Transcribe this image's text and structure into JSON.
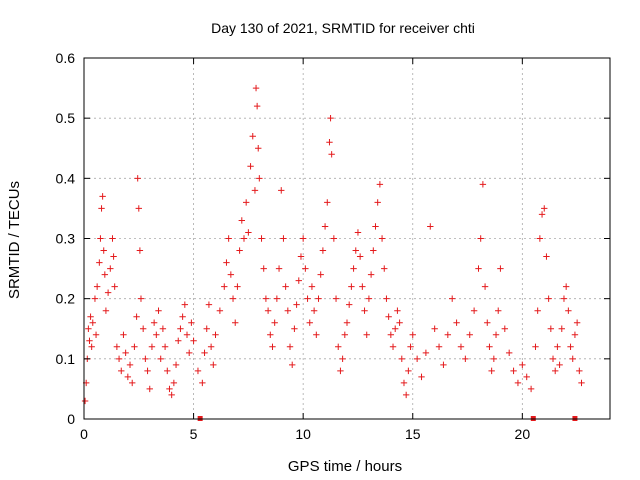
{
  "chart_data": {
    "type": "scatter",
    "title": "Day 130 of 2021, SRMTID for receiver chti",
    "xlabel": "GPS time / hours",
    "ylabel": "SRMTID / TECUs",
    "xlim": [
      0,
      24
    ],
    "ylim": [
      0,
      0.6
    ],
    "x_ticks": [
      0,
      5,
      10,
      15,
      20
    ],
    "y_ticks": [
      0,
      0.1,
      0.2,
      0.3,
      0.4,
      0.5,
      0.6
    ],
    "x_tick_labels": [
      "0",
      "5",
      "10",
      "15",
      "20"
    ],
    "y_tick_labels": [
      "0",
      "0.1",
      "0.2",
      "0.3",
      "0.4",
      "0.5",
      "0.6"
    ],
    "grid": true,
    "marker": "plus",
    "color": "#e41a1c",
    "series": [
      {
        "name": "SRMTID",
        "points": [
          [
            0.05,
            0.03
          ],
          [
            0.1,
            0.06
          ],
          [
            0.15,
            0.1
          ],
          [
            0.2,
            0.15
          ],
          [
            0.25,
            0.13
          ],
          [
            0.3,
            0.17
          ],
          [
            0.35,
            0.12
          ],
          [
            0.4,
            0.16
          ],
          [
            0.5,
            0.2
          ],
          [
            0.55,
            0.14
          ],
          [
            0.6,
            0.22
          ],
          [
            0.7,
            0.26
          ],
          [
            0.75,
            0.3
          ],
          [
            0.8,
            0.35
          ],
          [
            0.85,
            0.37
          ],
          [
            0.9,
            0.28
          ],
          [
            0.95,
            0.24
          ],
          [
            1.0,
            0.18
          ],
          [
            1.1,
            0.21
          ],
          [
            1.2,
            0.25
          ],
          [
            1.3,
            0.3
          ],
          [
            1.35,
            0.27
          ],
          [
            1.4,
            0.22
          ],
          [
            1.5,
            0.12
          ],
          [
            1.6,
            0.1
          ],
          [
            1.7,
            0.08
          ],
          [
            1.8,
            0.14
          ],
          [
            1.9,
            0.11
          ],
          [
            2.0,
            0.07
          ],
          [
            2.1,
            0.09
          ],
          [
            2.2,
            0.06
          ],
          [
            2.3,
            0.12
          ],
          [
            2.4,
            0.17
          ],
          [
            2.45,
            0.4
          ],
          [
            2.5,
            0.35
          ],
          [
            2.55,
            0.28
          ],
          [
            2.6,
            0.2
          ],
          [
            2.7,
            0.15
          ],
          [
            2.8,
            0.1
          ],
          [
            2.9,
            0.08
          ],
          [
            3.0,
            0.05
          ],
          [
            3.1,
            0.12
          ],
          [
            3.2,
            0.16
          ],
          [
            3.3,
            0.14
          ],
          [
            3.4,
            0.18
          ],
          [
            3.5,
            0.1
          ],
          [
            3.6,
            0.15
          ],
          [
            3.7,
            0.12
          ],
          [
            3.8,
            0.08
          ],
          [
            3.9,
            0.05
          ],
          [
            4.0,
            0.04
          ],
          [
            4.1,
            0.06
          ],
          [
            4.2,
            0.09
          ],
          [
            4.3,
            0.13
          ],
          [
            4.4,
            0.15
          ],
          [
            4.5,
            0.17
          ],
          [
            4.6,
            0.19
          ],
          [
            4.7,
            0.14
          ],
          [
            4.8,
            0.11
          ],
          [
            4.9,
            0.16
          ],
          [
            5.0,
            0.13
          ],
          [
            5.2,
            0.08
          ],
          [
            5.4,
            0.06
          ],
          [
            5.5,
            0.11
          ],
          [
            5.6,
            0.15
          ],
          [
            5.7,
            0.19
          ],
          [
            5.8,
            0.12
          ],
          [
            5.9,
            0.09
          ],
          [
            6.0,
            0.14
          ],
          [
            6.2,
            0.18
          ],
          [
            6.4,
            0.22
          ],
          [
            6.5,
            0.26
          ],
          [
            6.6,
            0.3
          ],
          [
            6.7,
            0.24
          ],
          [
            6.8,
            0.2
          ],
          [
            6.9,
            0.16
          ],
          [
            7.0,
            0.22
          ],
          [
            7.1,
            0.28
          ],
          [
            7.2,
            0.33
          ],
          [
            7.3,
            0.3
          ],
          [
            7.4,
            0.36
          ],
          [
            7.5,
            0.31
          ],
          [
            7.6,
            0.42
          ],
          [
            7.7,
            0.47
          ],
          [
            7.8,
            0.38
          ],
          [
            7.85,
            0.55
          ],
          [
            7.9,
            0.52
          ],
          [
            7.95,
            0.45
          ],
          [
            8.0,
            0.4
          ],
          [
            8.1,
            0.3
          ],
          [
            8.2,
            0.25
          ],
          [
            8.3,
            0.2
          ],
          [
            8.4,
            0.18
          ],
          [
            8.5,
            0.14
          ],
          [
            8.6,
            0.12
          ],
          [
            8.7,
            0.16
          ],
          [
            8.8,
            0.2
          ],
          [
            8.9,
            0.25
          ],
          [
            9.0,
            0.38
          ],
          [
            9.1,
            0.3
          ],
          [
            9.2,
            0.22
          ],
          [
            9.3,
            0.18
          ],
          [
            9.4,
            0.12
          ],
          [
            9.5,
            0.09
          ],
          [
            9.6,
            0.15
          ],
          [
            9.7,
            0.19
          ],
          [
            9.8,
            0.23
          ],
          [
            9.9,
            0.27
          ],
          [
            10.0,
            0.3
          ],
          [
            10.1,
            0.25
          ],
          [
            10.2,
            0.2
          ],
          [
            10.3,
            0.16
          ],
          [
            10.4,
            0.22
          ],
          [
            10.5,
            0.18
          ],
          [
            10.6,
            0.14
          ],
          [
            10.7,
            0.2
          ],
          [
            10.8,
            0.24
          ],
          [
            10.9,
            0.28
          ],
          [
            11.0,
            0.32
          ],
          [
            11.1,
            0.36
          ],
          [
            11.2,
            0.46
          ],
          [
            11.25,
            0.5
          ],
          [
            11.3,
            0.44
          ],
          [
            11.4,
            0.3
          ],
          [
            11.5,
            0.2
          ],
          [
            11.6,
            0.12
          ],
          [
            11.7,
            0.08
          ],
          [
            11.8,
            0.1
          ],
          [
            11.9,
            0.14
          ],
          [
            12.0,
            0.16
          ],
          [
            12.1,
            0.19
          ],
          [
            12.2,
            0.22
          ],
          [
            12.3,
            0.25
          ],
          [
            12.4,
            0.28
          ],
          [
            12.5,
            0.31
          ],
          [
            12.6,
            0.27
          ],
          [
            12.7,
            0.22
          ],
          [
            12.8,
            0.18
          ],
          [
            12.9,
            0.14
          ],
          [
            13.0,
            0.2
          ],
          [
            13.1,
            0.24
          ],
          [
            13.2,
            0.28
          ],
          [
            13.3,
            0.32
          ],
          [
            13.4,
            0.36
          ],
          [
            13.5,
            0.39
          ],
          [
            13.6,
            0.3
          ],
          [
            13.7,
            0.25
          ],
          [
            13.8,
            0.2
          ],
          [
            13.9,
            0.17
          ],
          [
            14.0,
            0.14
          ],
          [
            14.1,
            0.12
          ],
          [
            14.2,
            0.15
          ],
          [
            14.3,
            0.18
          ],
          [
            14.4,
            0.16
          ],
          [
            14.5,
            0.1
          ],
          [
            14.6,
            0.06
          ],
          [
            14.7,
            0.04
          ],
          [
            14.8,
            0.08
          ],
          [
            14.9,
            0.12
          ],
          [
            15.0,
            0.14
          ],
          [
            15.2,
            0.1
          ],
          [
            15.4,
            0.07
          ],
          [
            15.6,
            0.11
          ],
          [
            15.8,
            0.32
          ],
          [
            16.0,
            0.15
          ],
          [
            16.2,
            0.12
          ],
          [
            16.4,
            0.09
          ],
          [
            16.6,
            0.14
          ],
          [
            16.8,
            0.2
          ],
          [
            17.0,
            0.16
          ],
          [
            17.2,
            0.12
          ],
          [
            17.4,
            0.1
          ],
          [
            17.6,
            0.14
          ],
          [
            17.8,
            0.18
          ],
          [
            18.0,
            0.25
          ],
          [
            18.1,
            0.3
          ],
          [
            18.2,
            0.39
          ],
          [
            18.3,
            0.22
          ],
          [
            18.4,
            0.16
          ],
          [
            18.5,
            0.12
          ],
          [
            18.6,
            0.08
          ],
          [
            18.7,
            0.1
          ],
          [
            18.8,
            0.14
          ],
          [
            18.9,
            0.18
          ],
          [
            19.0,
            0.25
          ],
          [
            19.2,
            0.15
          ],
          [
            19.4,
            0.11
          ],
          [
            19.6,
            0.08
          ],
          [
            19.8,
            0.06
          ],
          [
            20.0,
            0.09
          ],
          [
            20.2,
            0.07
          ],
          [
            20.4,
            0.05
          ],
          [
            20.6,
            0.12
          ],
          [
            20.7,
            0.18
          ],
          [
            20.8,
            0.3
          ],
          [
            20.9,
            0.34
          ],
          [
            21.0,
            0.35
          ],
          [
            21.1,
            0.27
          ],
          [
            21.2,
            0.2
          ],
          [
            21.3,
            0.15
          ],
          [
            21.4,
            0.1
          ],
          [
            21.5,
            0.08
          ],
          [
            21.6,
            0.12
          ],
          [
            21.7,
            0.09
          ],
          [
            21.8,
            0.15
          ],
          [
            21.9,
            0.2
          ],
          [
            22.0,
            0.22
          ],
          [
            22.1,
            0.18
          ],
          [
            22.2,
            0.12
          ],
          [
            22.3,
            0.1
          ],
          [
            22.4,
            0.14
          ],
          [
            22.5,
            0.16
          ],
          [
            22.6,
            0.08
          ],
          [
            22.7,
            0.06
          ]
        ]
      }
    ],
    "gap_markers_x": [
      5.3,
      20.5,
      22.4
    ]
  }
}
